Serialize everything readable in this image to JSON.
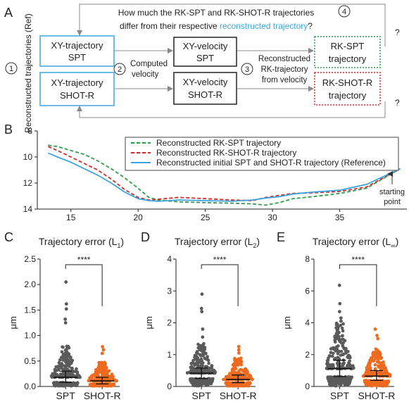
{
  "panel_letters": {
    "a": "A",
    "b": "B",
    "c": "C",
    "d": "D",
    "e": "E"
  },
  "diagram": {
    "question_line1": "How much the RK-SPT and RK-SHOT-R trajectories",
    "question_line2_part1": "differ from their respective ",
    "question_line2_link": "reconstructed trajectory",
    "question_line2_end": "?",
    "side_label": "Reconstructed trajectories (Ref)",
    "step1": "1",
    "step2": "2",
    "step3": "3",
    "step4": "4",
    "box_xy_spt": [
      "XY-trajectory",
      "SPT"
    ],
    "box_xy_shot": [
      "XY-trajectory",
      "SHOT-R"
    ],
    "box_v_spt": [
      "XY-velocity",
      "SPT"
    ],
    "box_v_shot": [
      "XY-velocity",
      "SHOT-R"
    ],
    "box_rk_spt": [
      "RK-SPT",
      "trajectory"
    ],
    "box_rk_shot": [
      "RK-SHOT-R",
      "trajectory"
    ],
    "computed_velocity": [
      "Computed",
      "velocity"
    ],
    "reconstructed_label": [
      "Reconstructed",
      "RK-trajectory",
      "from velocity"
    ],
    "qmark": "?",
    "colors": {
      "blue": "#3aa6dd",
      "green": "#2f9e4a",
      "red": "#d52b2b",
      "gray": "#888888"
    }
  },
  "traj_annotation": [
    "starting",
    "point"
  ],
  "chart_data": [
    {
      "type": "line",
      "panel": "B",
      "xlim": [
        12.5,
        40
      ],
      "ylim": [
        14,
        8
      ],
      "xticks": [
        15,
        20,
        25,
        30,
        35
      ],
      "yticks": [
        8,
        10,
        12,
        14
      ],
      "legend_position": "top-right",
      "series": [
        {
          "name": "Reconstructed RK-SPT trajectory",
          "color": "#2f9e4a",
          "dash": true,
          "points": [
            [
              13.3,
              9.1
            ],
            [
              14,
              9.2
            ],
            [
              15,
              9.5
            ],
            [
              16,
              9.8
            ],
            [
              17,
              10.3
            ],
            [
              18,
              10.9
            ],
            [
              19,
              11.6
            ],
            [
              20,
              12.4
            ],
            [
              20.8,
              13.1
            ],
            [
              21.5,
              13.3
            ],
            [
              23,
              13.45
            ],
            [
              25,
              13.5
            ],
            [
              27,
              13.55
            ],
            [
              28.5,
              13.6
            ],
            [
              29.5,
              13.7
            ],
            [
              30.5,
              13.5
            ],
            [
              31.5,
              13.2
            ],
            [
              33,
              13.05
            ],
            [
              35,
              12.8
            ],
            [
              37,
              12.4
            ],
            [
              39.5,
              10.9
            ]
          ]
        },
        {
          "name": "Reconstructed RK-SHOT-R trajectory",
          "color": "#d52b2b",
          "dash": true,
          "points": [
            [
              13.3,
              9.2
            ],
            [
              14,
              9.5
            ],
            [
              15,
              10.0
            ],
            [
              16,
              10.5
            ],
            [
              17,
              11.0
            ],
            [
              18,
              11.7
            ],
            [
              19,
              12.5
            ],
            [
              20,
              13.1
            ],
            [
              20.8,
              13.3
            ],
            [
              21.5,
              13.25
            ],
            [
              23,
              13.1
            ],
            [
              25,
              13.2
            ],
            [
              27,
              13.3
            ],
            [
              28.5,
              13.35
            ],
            [
              29.5,
              13.1
            ],
            [
              30.5,
              12.95
            ],
            [
              31.5,
              12.8
            ],
            [
              33,
              12.75
            ],
            [
              35,
              12.65
            ],
            [
              37,
              12.3
            ],
            [
              39.5,
              10.9
            ]
          ]
        },
        {
          "name": "Reconstructed initial SPT and SHOT-R trajectory (Reference)",
          "color": "#3aa6dd",
          "dash": false,
          "points": [
            [
              13.3,
              9.7
            ],
            [
              14,
              10.0
            ],
            [
              15,
              10.4
            ],
            [
              16,
              10.9
            ],
            [
              17,
              11.4
            ],
            [
              18,
              12.0
            ],
            [
              19,
              12.7
            ],
            [
              20,
              13.2
            ],
            [
              20.8,
              13.35
            ],
            [
              21.5,
              13.4
            ],
            [
              23,
              13.3
            ],
            [
              25,
              13.35
            ],
            [
              27,
              13.4
            ],
            [
              28.5,
              13.3
            ],
            [
              29.5,
              13.15
            ],
            [
              30.5,
              13.05
            ],
            [
              31.5,
              12.85
            ],
            [
              33,
              12.7
            ],
            [
              35,
              12.55
            ],
            [
              37,
              12.1
            ],
            [
              39.5,
              10.9
            ]
          ]
        }
      ]
    },
    {
      "type": "scatter",
      "panel": "C",
      "title": "Trajectory error (L",
      "title_sub": "1",
      "title_end": ")",
      "ylabel": "μm",
      "ylim": [
        0,
        2.5
      ],
      "yticks": [
        "0.0",
        "0.5",
        "1.0",
        "1.5",
        "2.0",
        "2.5"
      ],
      "categories": [
        "SPT",
        "SHOT-R"
      ],
      "significance": "****",
      "medians": [
        0.18,
        0.11
      ],
      "q1": [
        0.08,
        0.05
      ],
      "q3": [
        0.3,
        0.18
      ],
      "outliers": [
        [
          2.05,
          1.62,
          1.52,
          1.32,
          1.25
        ],
        [
          0.78,
          0.72,
          0.65
        ]
      ]
    },
    {
      "type": "scatter",
      "panel": "D",
      "title": "Trajectory error (L",
      "title_sub": "2",
      "title_end": ")",
      "ylabel": "μm",
      "ylim": [
        0,
        4
      ],
      "yticks": [
        "0",
        "1",
        "2",
        "3",
        "4"
      ],
      "categories": [
        "SPT",
        "SHOT-R"
      ],
      "significance": "****",
      "medians": [
        0.42,
        0.22
      ],
      "q1": [
        0.25,
        0.12
      ],
      "q3": [
        0.58,
        0.36
      ],
      "outliers": [
        [
          2.9,
          2.45,
          2.35,
          1.8,
          1.55
        ],
        [
          1.25,
          1.15,
          1.05
        ]
      ]
    },
    {
      "type": "scatter",
      "panel": "E",
      "title": "Trajectory error (L",
      "title_sub": "∞",
      "title_end": ")",
      "ylabel": "μm",
      "ylim": [
        0,
        8
      ],
      "yticks": [
        "0",
        "2",
        "4",
        "6",
        "8"
      ],
      "categories": [
        "SPT",
        "SHOT-R"
      ],
      "significance": "****",
      "medians": [
        1.12,
        0.65
      ],
      "q1": [
        0.62,
        0.38
      ],
      "q3": [
        1.65,
        1.0
      ],
      "outliers": [
        [
          6.35,
          5.2,
          4.7,
          4.3,
          4.1
        ],
        [
          3.6,
          3.2,
          3.0
        ]
      ]
    }
  ]
}
